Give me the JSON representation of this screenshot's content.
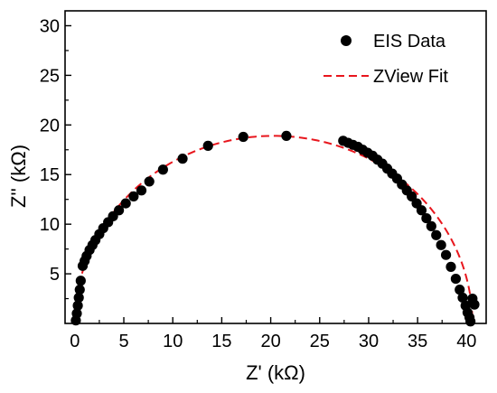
{
  "chart_data": {
    "type": "scatter",
    "xlabel": "Z' (kΩ)",
    "ylabel": "Z'' (kΩ)",
    "xlim": [
      -1,
      42
    ],
    "ylim": [
      0,
      31.5
    ],
    "xticks": [
      0,
      5,
      10,
      15,
      20,
      25,
      30,
      35,
      40
    ],
    "yticks": [
      5,
      10,
      15,
      20,
      25,
      30
    ],
    "legend_position": "top-right",
    "grid": false,
    "series": [
      {
        "name": "EIS Data",
        "kind": "markers",
        "color": "#000000",
        "points": [
          [
            0.1,
            0.3
          ],
          [
            0.2,
            1.0
          ],
          [
            0.3,
            1.8
          ],
          [
            0.4,
            2.6
          ],
          [
            0.5,
            3.4
          ],
          [
            0.6,
            4.3
          ],
          [
            0.8,
            5.8
          ],
          [
            1.0,
            6.3
          ],
          [
            1.2,
            6.8
          ],
          [
            1.5,
            7.4
          ],
          [
            1.8,
            7.9
          ],
          [
            2.1,
            8.4
          ],
          [
            2.5,
            9.0
          ],
          [
            2.9,
            9.6
          ],
          [
            3.4,
            10.2
          ],
          [
            3.9,
            10.8
          ],
          [
            4.5,
            11.4
          ],
          [
            5.2,
            12.1
          ],
          [
            6.0,
            12.8
          ],
          [
            6.8,
            13.4
          ],
          [
            7.6,
            14.3
          ],
          [
            9.0,
            15.5
          ],
          [
            11.0,
            16.6
          ],
          [
            13.6,
            17.9
          ],
          [
            17.2,
            18.8
          ],
          [
            21.6,
            18.9
          ],
          [
            27.4,
            18.4
          ],
          [
            27.9,
            18.2
          ],
          [
            28.4,
            18.0
          ],
          [
            28.9,
            17.8
          ],
          [
            29.4,
            17.5
          ],
          [
            29.9,
            17.2
          ],
          [
            30.4,
            16.9
          ],
          [
            30.9,
            16.5
          ],
          [
            31.4,
            16.1
          ],
          [
            31.9,
            15.6
          ],
          [
            32.4,
            15.1
          ],
          [
            32.9,
            14.6
          ],
          [
            33.4,
            14.0
          ],
          [
            33.9,
            13.4
          ],
          [
            34.4,
            12.8
          ],
          [
            34.9,
            12.1
          ],
          [
            35.4,
            11.4
          ],
          [
            35.9,
            10.6
          ],
          [
            36.4,
            9.8
          ],
          [
            36.9,
            8.9
          ],
          [
            37.4,
            7.9
          ],
          [
            37.9,
            6.9
          ],
          [
            38.4,
            5.7
          ],
          [
            38.9,
            4.5
          ],
          [
            39.3,
            3.4
          ],
          [
            39.6,
            2.6
          ],
          [
            39.9,
            1.8
          ],
          [
            40.1,
            1.1
          ],
          [
            40.3,
            0.6
          ],
          [
            40.4,
            0.2
          ],
          [
            40.6,
            2.5
          ],
          [
            40.8,
            1.9
          ]
        ]
      },
      {
        "name": "ZView Fit",
        "kind": "dashed-line",
        "color": "#e8161d",
        "center_x": 20.3,
        "radius_x": 20.3,
        "radius_y": 18.9
      }
    ]
  }
}
